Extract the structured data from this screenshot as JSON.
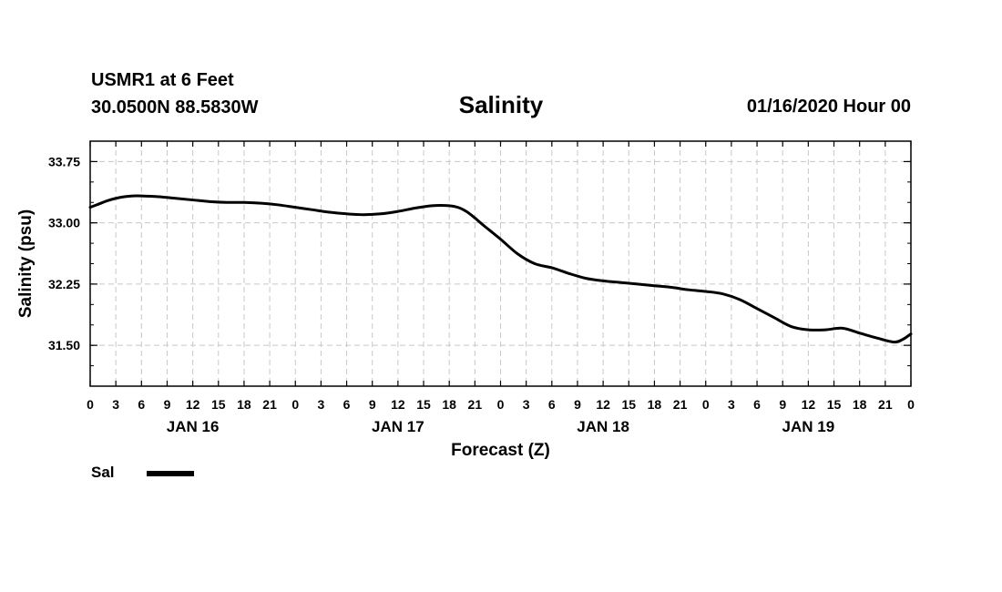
{
  "header": {
    "station": "USMR1 at 6 Feet",
    "coords": "30.0500N 88.5830W",
    "title": "Salinity",
    "issued": "01/16/2020 Hour 00"
  },
  "legend": {
    "label": "Sal"
  },
  "colors": {
    "line": "#000000",
    "grid": "#c8c8c8",
    "background": "#ffffff"
  },
  "chart_data": {
    "type": "line",
    "title": "Salinity",
    "xlabel": "Forecast (Z)",
    "ylabel": "Salinity (psu)",
    "grid": true,
    "legend_position": "bottom-left",
    "xlim": [
      0,
      96
    ],
    "ylim": [
      31.0,
      34.0
    ],
    "x_unit": "hours since 01/16/2020 00Z",
    "x_ticks": [
      0,
      3,
      6,
      9,
      12,
      15,
      18,
      21,
      24,
      27,
      30,
      33,
      36,
      39,
      42,
      45,
      48,
      51,
      54,
      57,
      60,
      63,
      66,
      69,
      72,
      75,
      78,
      81,
      84,
      87,
      90,
      93,
      96
    ],
    "x_tick_labels": [
      "0",
      "3",
      "6",
      "9",
      "12",
      "15",
      "18",
      "21",
      "0",
      "3",
      "6",
      "9",
      "12",
      "15",
      "18",
      "21",
      "0",
      "3",
      "6",
      "9",
      "12",
      "15",
      "18",
      "21",
      "0",
      "3",
      "6",
      "9",
      "12",
      "15",
      "18",
      "21",
      "0"
    ],
    "y_ticks": [
      31.5,
      32.25,
      33.0,
      33.75
    ],
    "y_tick_labels": [
      "31.50",
      "32.25",
      "33.00",
      "33.75"
    ],
    "day_labels": [
      {
        "label": "JAN 16",
        "x": 12
      },
      {
        "label": "JAN 17",
        "x": 36
      },
      {
        "label": "JAN 18",
        "x": 60
      },
      {
        "label": "JAN 19",
        "x": 84
      }
    ],
    "series": [
      {
        "name": "Sal",
        "x": [
          0,
          1,
          2,
          3,
          4,
          5,
          6,
          8,
          10,
          12,
          14,
          16,
          18,
          20,
          22,
          24,
          26,
          28,
          30,
          32,
          34,
          36,
          38,
          40,
          42,
          43,
          44,
          45,
          46,
          48,
          50,
          52,
          54,
          56,
          58,
          60,
          62,
          64,
          66,
          68,
          70,
          72,
          74,
          76,
          78,
          80,
          82,
          84,
          86,
          88,
          90,
          92,
          94,
          95,
          96
        ],
        "values": [
          33.19,
          33.23,
          33.27,
          33.3,
          33.32,
          33.33,
          33.33,
          33.32,
          33.3,
          33.28,
          33.26,
          33.25,
          33.25,
          33.24,
          33.22,
          33.19,
          33.16,
          33.13,
          33.11,
          33.1,
          33.11,
          33.14,
          33.18,
          33.21,
          33.21,
          33.19,
          33.14,
          33.06,
          32.97,
          32.8,
          32.62,
          32.5,
          32.45,
          32.38,
          32.32,
          32.29,
          32.27,
          32.25,
          32.23,
          32.21,
          32.18,
          32.16,
          32.13,
          32.06,
          31.95,
          31.84,
          31.73,
          31.69,
          31.69,
          31.71,
          31.65,
          31.59,
          31.54,
          31.57,
          31.64
        ]
      }
    ]
  }
}
